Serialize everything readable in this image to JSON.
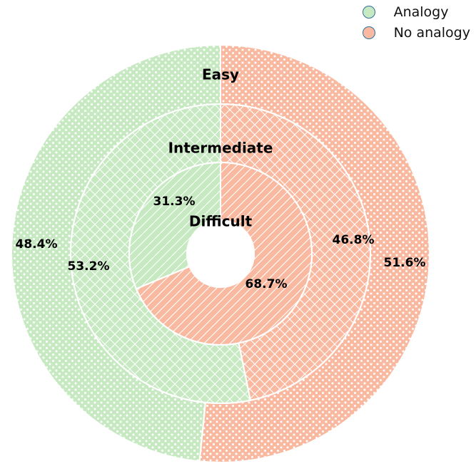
{
  "chart_data": {
    "type": "pie",
    "subtype": "nested-donut",
    "legend_position": "top-right",
    "series_names": [
      "Analogy",
      "No analogy"
    ],
    "colors": {
      "Analogy": "#c6e9c1",
      "No analogy": "#f9b9a0"
    },
    "rings": [
      {
        "label": "Easy",
        "values": [
          48.4,
          51.6
        ],
        "labels": [
          "48.4%",
          "51.6%"
        ],
        "pattern": "dots"
      },
      {
        "label": "Intermediate",
        "values": [
          53.2,
          46.8
        ],
        "labels": [
          "53.2%",
          "46.8%"
        ],
        "pattern": "crosshatch"
      },
      {
        "label": "Difficult",
        "values": [
          31.3,
          68.7
        ],
        "labels": [
          "31.3%",
          "68.7%"
        ],
        "pattern": "diagonal"
      }
    ]
  }
}
